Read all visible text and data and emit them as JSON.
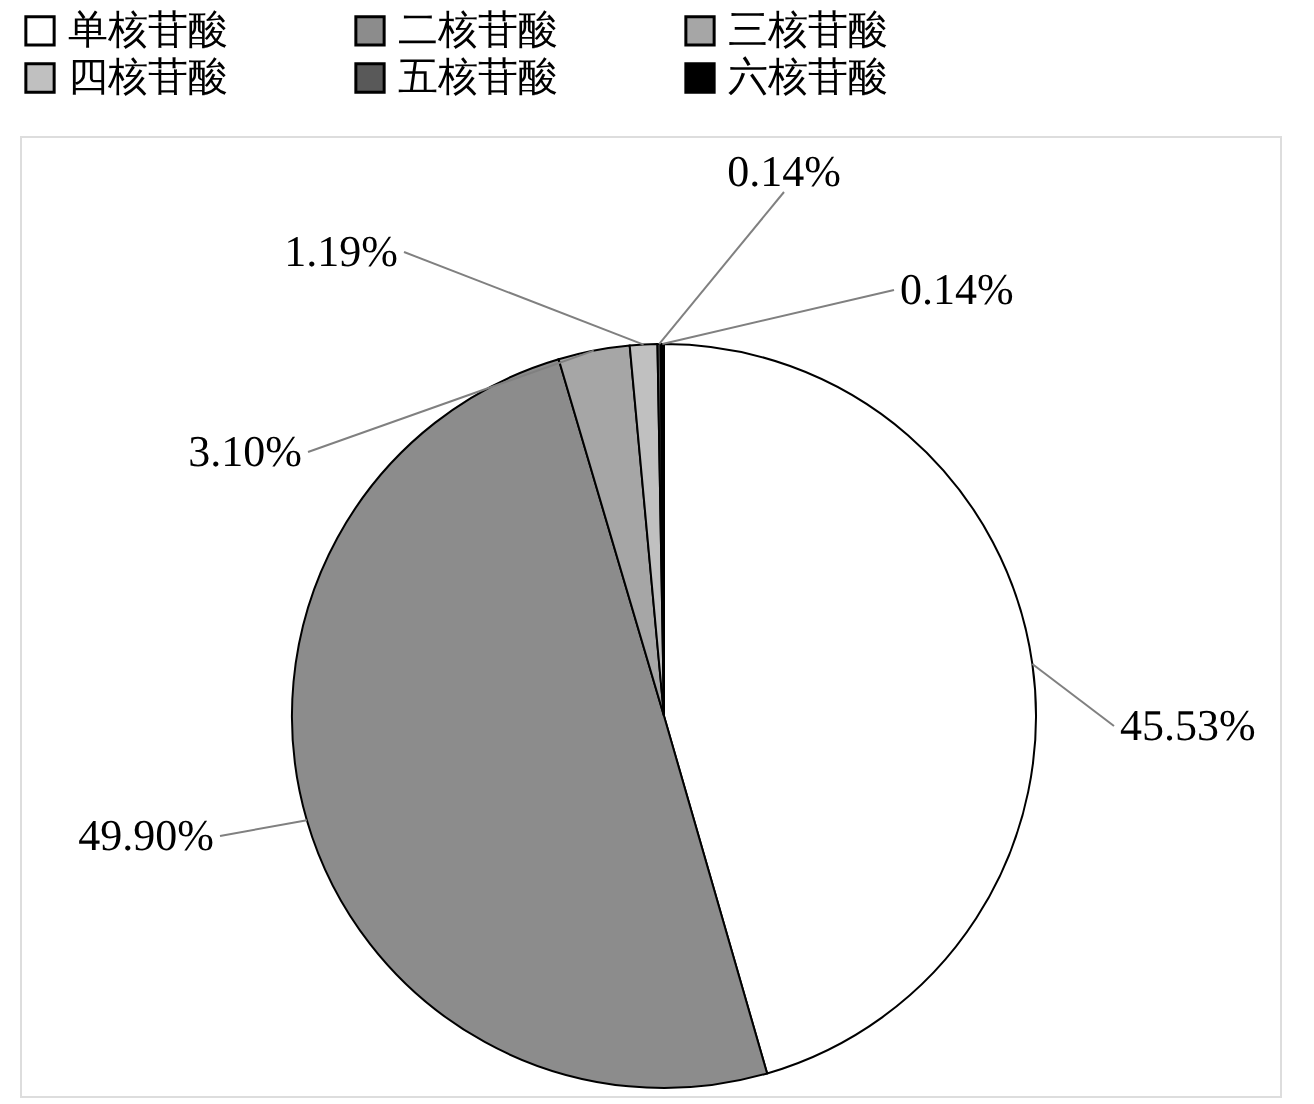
{
  "chart_data": {
    "type": "pie",
    "categories": [
      "单核苷酸",
      "二核苷酸",
      "三核苷酸",
      "四核苷酸",
      "五核苷酸",
      "六核苷酸"
    ],
    "values": [
      45.53,
      49.9,
      3.1,
      1.19,
      0.14,
      0.14
    ],
    "value_labels": [
      "45.53%",
      "49.90%",
      "3.10%",
      "1.19%",
      "0.14%",
      "0.14%"
    ],
    "colors": [
      "#ffffff",
      "#8c8c8c",
      "#a6a6a6",
      "#c0c0c0",
      "#595959",
      "#000000"
    ],
    "legend": "top"
  }
}
